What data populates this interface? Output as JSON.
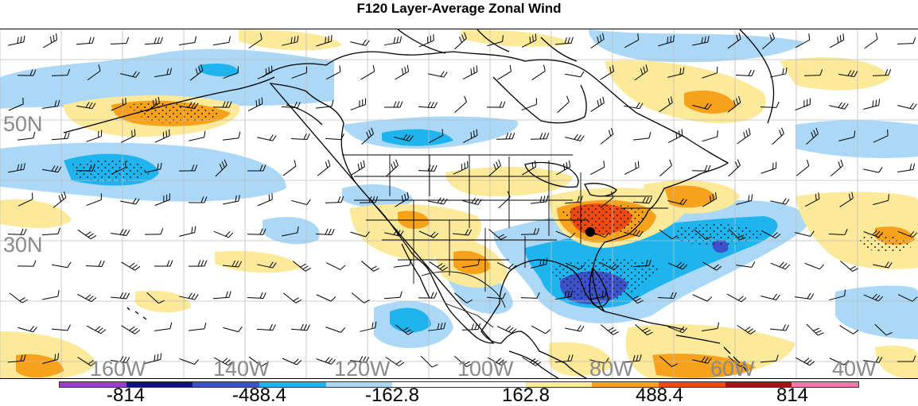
{
  "title": "F120 Layer-Average Zonal Wind",
  "latitude_labels": [
    "50N",
    "30N"
  ],
  "longitude_labels": [
    "160W",
    "140W",
    "120W",
    "100W",
    "80W",
    "60W",
    "40W"
  ],
  "colorbar": {
    "labels": [
      "-814",
      "-488.4",
      "-162.8",
      "162.8",
      "488.4",
      "814"
    ],
    "colors": [
      "#9b3ec8",
      "#12127f",
      "#3c52c8",
      "#1fb4ee",
      "#aad8f6",
      "#ffffff",
      "#ffffff",
      "#fde99a",
      "#f7a21c",
      "#ee4a16",
      "#a51414",
      "#f07aaa"
    ]
  },
  "colors": {
    "light_blue": "#aad8f6",
    "medium_blue": "#1fb4ee",
    "dark_blue": "#3c52c8",
    "light_yellow": "#fde99a",
    "orange": "#f7a21c",
    "red_orange": "#ee4a16"
  },
  "map_markers": [
    {
      "name": "station-marker",
      "color": "#000000"
    }
  ],
  "layers": [
    "wind-barbs",
    "coastlines",
    "state-borders",
    "lat-lon-grid",
    "stipple"
  ]
}
